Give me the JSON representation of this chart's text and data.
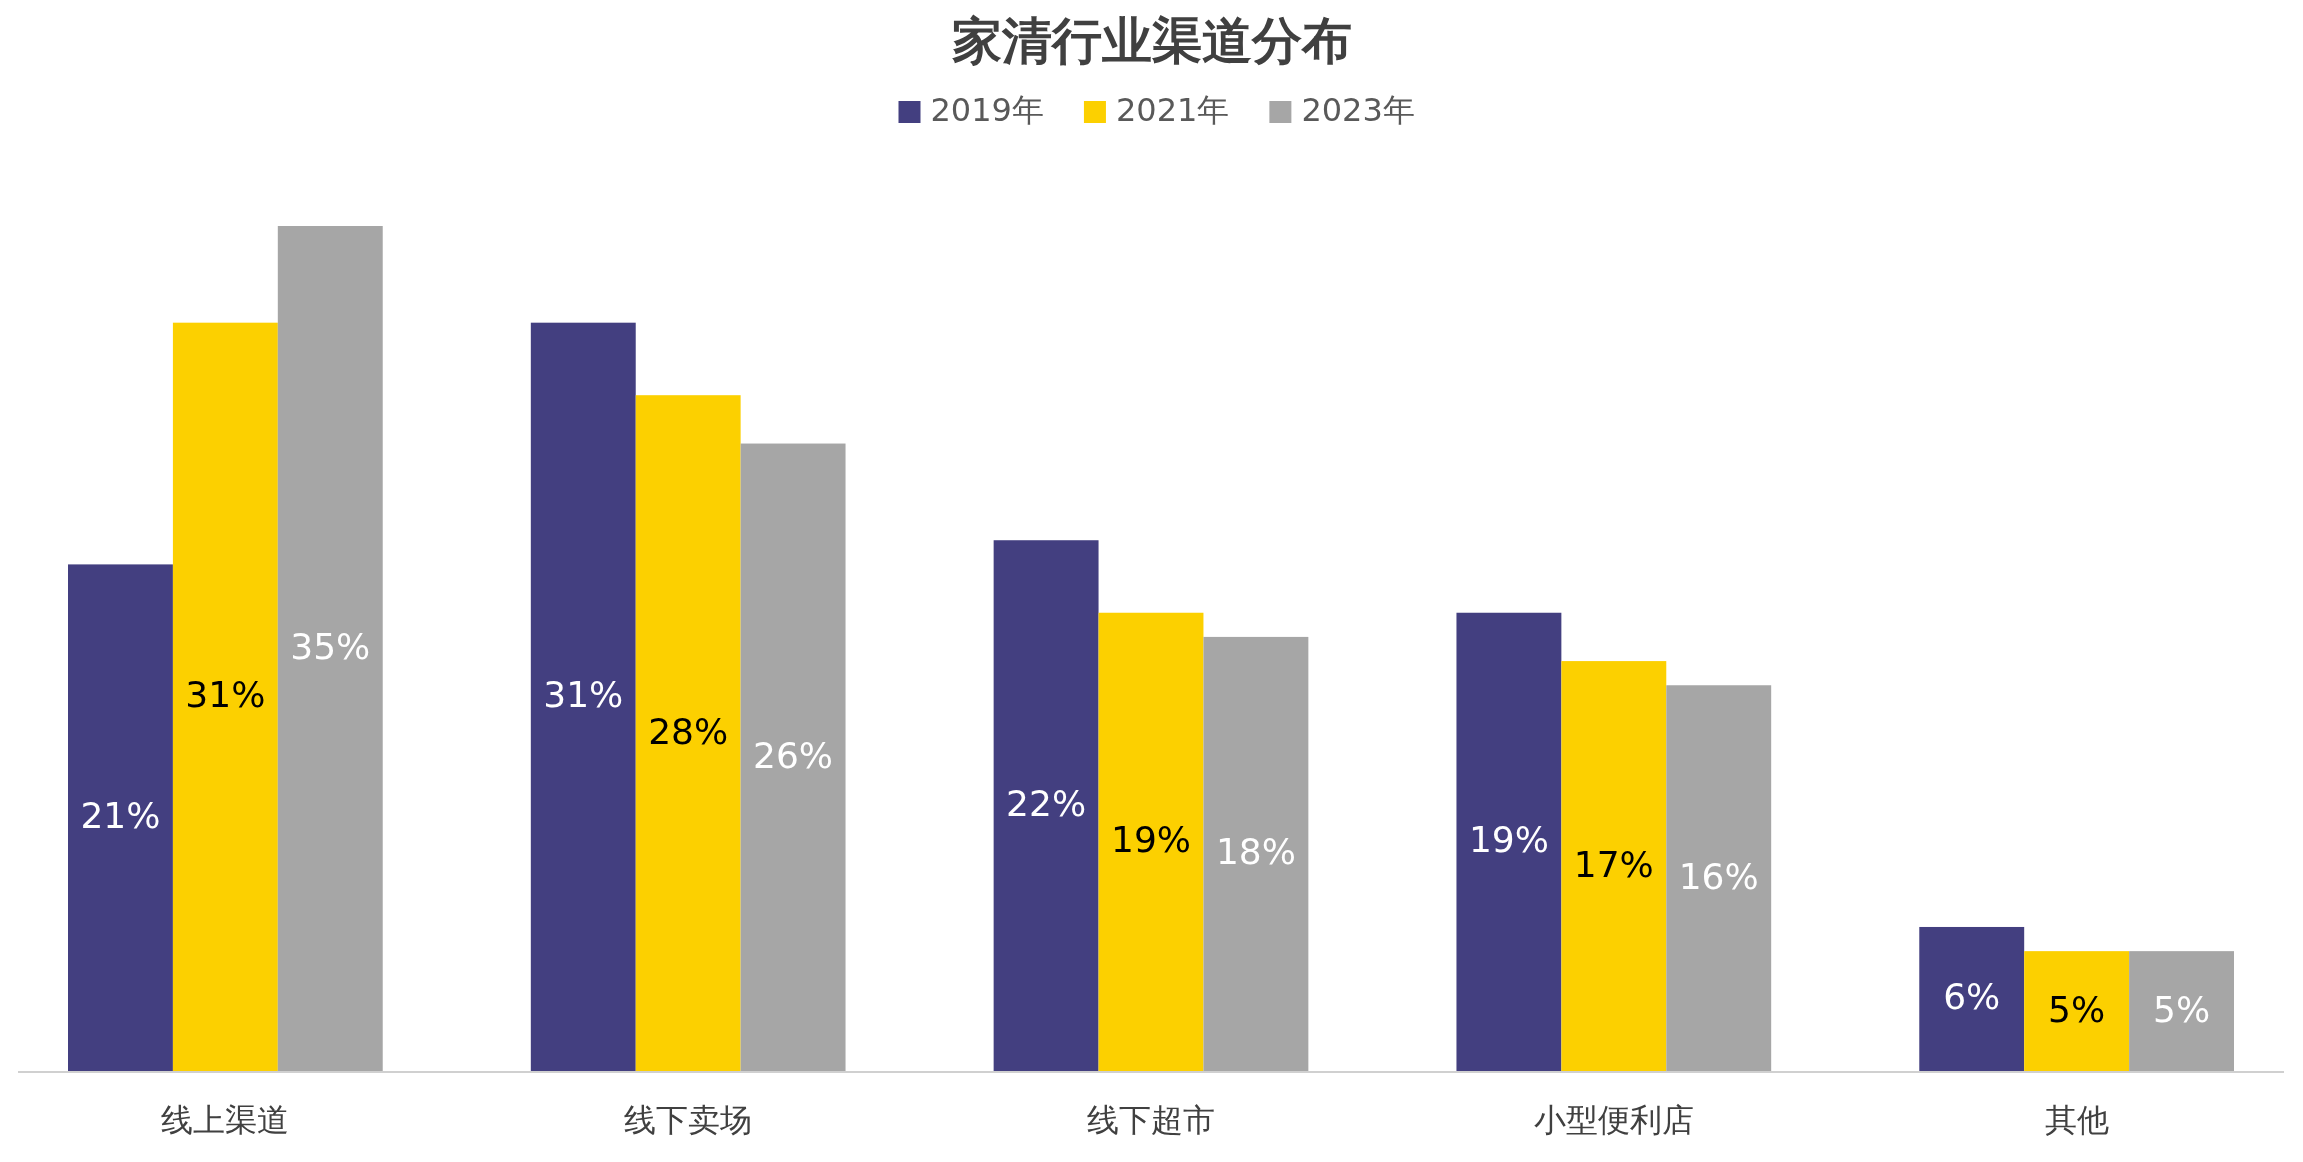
{
  "chart_data": {
    "type": "bar",
    "title": "家清行业渠道分布",
    "categories": [
      "线上渠道",
      "线下卖场",
      "线下超市",
      "小型便利店",
      "其他"
    ],
    "legend": "top",
    "series": [
      {
        "name": "2019年",
        "color": "#433f80",
        "values": [
          21,
          31,
          22,
          19,
          6
        ],
        "value_labels": [
          "21%",
          "31%",
          "22%",
          "19%",
          "6%"
        ]
      },
      {
        "name": "2021年",
        "color": "#fcd000",
        "values": [
          31,
          28,
          19,
          17,
          5
        ],
        "value_labels": [
          "31%",
          "28%",
          "19%",
          "17%",
          "5%"
        ]
      },
      {
        "name": "2023年",
        "color": "#a6a6a6",
        "values": [
          35,
          26,
          18,
          16,
          5
        ],
        "value_labels": [
          "35%",
          "26%",
          "18%",
          "16%",
          "5%"
        ]
      }
    ]
  }
}
